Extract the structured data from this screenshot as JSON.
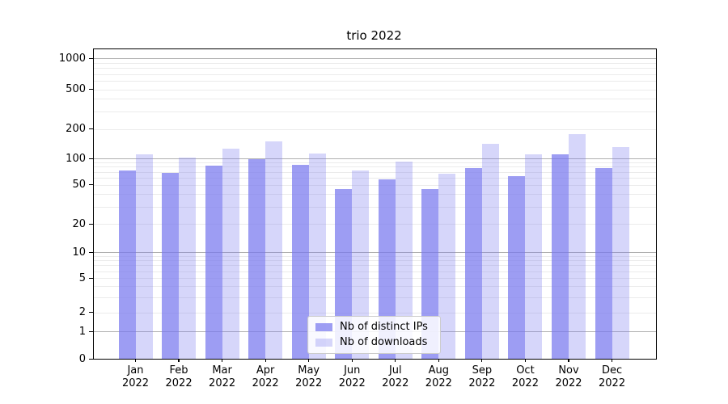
{
  "chart_data": {
    "type": "bar",
    "title": "trio 2022",
    "categories": [
      "Jan",
      "Feb",
      "Mar",
      "Apr",
      "May",
      "Jun",
      "Jul",
      "Aug",
      "Sep",
      "Oct",
      "Nov",
      "Dec"
    ],
    "xtick_year": "2022",
    "series": [
      {
        "name": "Nb of distinct IPs",
        "color": "rgba(119,119,238,0.72)",
        "values": [
          72,
          68,
          82,
          97,
          84,
          45,
          57,
          45,
          78,
          63,
          110,
          78
        ]
      },
      {
        "name": "Nb of downloads",
        "color": "rgba(119,119,238,0.30)",
        "values": [
          110,
          102,
          126,
          150,
          113,
          72,
          92,
          66,
          142,
          110,
          176,
          130
        ]
      }
    ],
    "yticks": [
      0,
      1,
      2,
      5,
      10,
      20,
      50,
      100,
      200,
      500,
      1000
    ],
    "yaxis_type": "symlog",
    "ylim": [
      0,
      1000
    ],
    "grid": true,
    "legend_position": "bottom-center",
    "colors": {
      "grid_major": "#b0b0b0",
      "grid_minor": "#ebebeb",
      "spine": "#000000",
      "text": "#000000",
      "background": "#ffffff"
    }
  }
}
